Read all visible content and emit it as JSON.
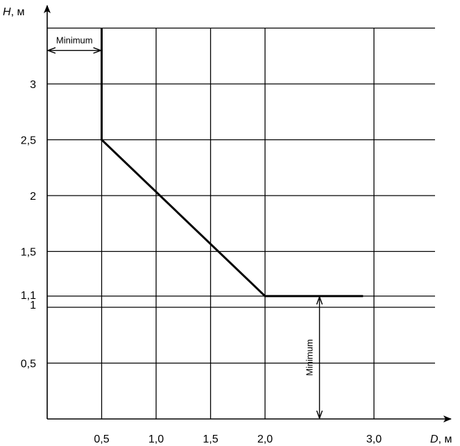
{
  "chart_data": {
    "type": "line",
    "title": "",
    "xlabel": {
      "symbol": "D",
      "unit": ", м"
    },
    "ylabel": {
      "symbol": "H",
      "unit": ", м"
    },
    "xlim": [
      0,
      3.65
    ],
    "ylim": [
      0,
      3.5
    ],
    "x_ticks": [
      {
        "value": 0.5,
        "label": "0,5"
      },
      {
        "value": 1.0,
        "label": "1,0"
      },
      {
        "value": 1.5,
        "label": "1,5"
      },
      {
        "value": 2.0,
        "label": "2,0"
      },
      {
        "value": 3.0,
        "label": "3,0"
      }
    ],
    "y_ticks": [
      {
        "value": 0.5,
        "label": "0,5"
      },
      {
        "value": 1.0,
        "label": "1"
      },
      {
        "value": 1.1,
        "label": "1,1"
      },
      {
        "value": 1.5,
        "label": "1,5"
      },
      {
        "value": 2.0,
        "label": "2"
      },
      {
        "value": 2.5,
        "label": "2,5"
      },
      {
        "value": 3.0,
        "label": "3"
      }
    ],
    "grid": true,
    "grid_x": [
      0.5,
      1.0,
      1.5,
      2.0,
      3.0
    ],
    "grid_y": [
      0.5,
      1.0,
      1.1,
      1.5,
      2.0,
      2.5,
      3.0,
      3.5
    ],
    "series": [
      {
        "points": [
          {
            "x": 0.5,
            "y": 3.5
          },
          {
            "x": 0.5,
            "y": 2.5
          },
          {
            "x": 2.0,
            "y": 1.1
          },
          {
            "x": 2.9,
            "y": 1.1
          }
        ],
        "color": "#000000"
      }
    ],
    "annotations": [
      {
        "text": "Minimum",
        "orientation": "horizontal",
        "from": {
          "x": 0,
          "y": 3.3
        },
        "to": {
          "x": 0.5,
          "y": 3.3
        }
      },
      {
        "text": "Minimum",
        "orientation": "vertical",
        "from": {
          "x": 2.5,
          "y": 1.1
        },
        "to": {
          "x": 2.5,
          "y": 0
        }
      }
    ]
  }
}
